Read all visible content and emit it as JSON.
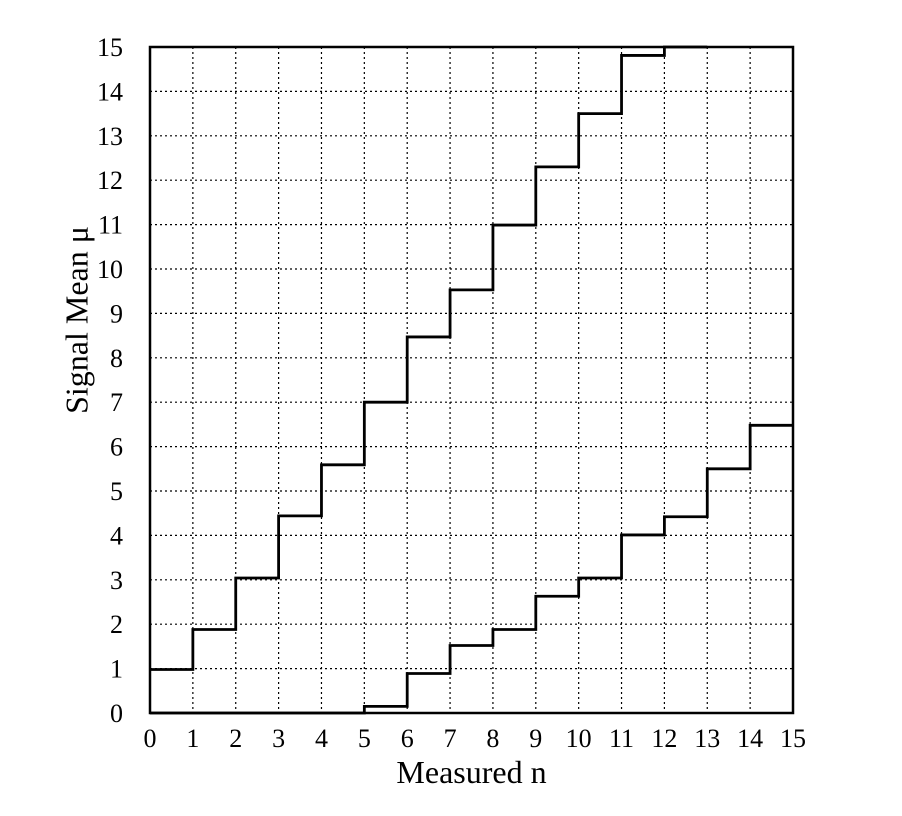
{
  "chart_data": {
    "type": "line",
    "step": true,
    "title": "",
    "xlabel": "Measured n",
    "ylabel": "Signal Mean μ",
    "xlim": [
      0,
      15
    ],
    "ylim": [
      0,
      15
    ],
    "grid": true,
    "x_ticks": [
      "0",
      "1",
      "2",
      "3",
      "4",
      "5",
      "6",
      "7",
      "8",
      "9",
      "10",
      "11",
      "12",
      "13",
      "14",
      "15"
    ],
    "y_ticks": [
      "0",
      "1",
      "2",
      "3",
      "4",
      "5",
      "6",
      "7",
      "8",
      "9",
      "10",
      "11",
      "12",
      "13",
      "14",
      "15"
    ],
    "series": [
      {
        "x": [
          0,
          1,
          2,
          3,
          4,
          5,
          6,
          7,
          8,
          9,
          10,
          11,
          12
        ],
        "values": [
          0.98,
          1.88,
          3.04,
          4.44,
          5.59,
          7.0,
          8.47,
          9.53,
          10.99,
          12.3,
          13.5,
          14.81,
          15.0
        ]
      },
      {
        "x": [
          0,
          5,
          6,
          7,
          8,
          9,
          10,
          11,
          12,
          13,
          14
        ],
        "values": [
          0,
          0.15,
          0.89,
          1.52,
          1.88,
          2.63,
          3.04,
          4.01,
          4.42,
          5.5,
          6.48
        ]
      }
    ]
  }
}
